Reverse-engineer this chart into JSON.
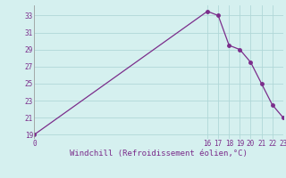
{
  "x": [
    0,
    16,
    17,
    18,
    19,
    20,
    21,
    22,
    23
  ],
  "y": [
    19,
    33.5,
    33.0,
    29.5,
    29.0,
    27.5,
    25.0,
    22.5,
    21.0
  ],
  "line_color": "#7b2d8b",
  "marker_color": "#7b2d8b",
  "bg_color": "#d5f0ef",
  "grid_color": "#b0d8d8",
  "xlabel": "Windchill (Refroidissement éolien,°C)",
  "xlabel_color": "#7b2d8b",
  "tick_color": "#7b2d8b",
  "yticks": [
    19,
    21,
    23,
    25,
    27,
    29,
    31,
    33
  ],
  "xtick_labels_left": [
    "0"
  ],
  "xtick_labels_right": [
    "16",
    "17",
    "18",
    "19",
    "20",
    "21",
    "22",
    "23"
  ],
  "xlim": [
    0,
    23
  ],
  "ylim": [
    18.5,
    34.2
  ]
}
